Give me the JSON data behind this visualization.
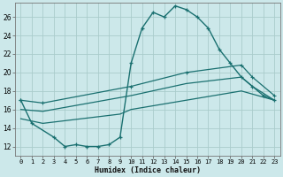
{
  "xlabel": "Humidex (Indice chaleur)",
  "background_color": "#cce8ea",
  "grid_color": "#aacccc",
  "line_color": "#1a7070",
  "xlim": [
    -0.5,
    23.5
  ],
  "ylim": [
    11.0,
    27.5
  ],
  "yticks": [
    12,
    14,
    16,
    18,
    20,
    22,
    24,
    26
  ],
  "xtick_labels": [
    "0",
    "1",
    "2",
    "3",
    "4",
    "5",
    "6",
    "7",
    "8",
    "9",
    "10",
    "11",
    "12",
    "13",
    "14",
    "15",
    "16",
    "17",
    "18",
    "19",
    "20",
    "21",
    "22",
    "23"
  ],
  "series1_x": [
    0,
    1,
    3,
    4,
    5,
    6,
    7,
    8,
    9,
    10,
    11,
    12,
    13,
    14,
    15,
    16,
    17,
    18,
    19,
    20,
    21,
    22,
    23
  ],
  "series1_y": [
    17.0,
    14.5,
    13.0,
    12.0,
    12.2,
    12.0,
    12.0,
    12.2,
    13.0,
    21.0,
    24.8,
    26.5,
    26.0,
    27.2,
    26.8,
    26.0,
    24.8,
    22.5,
    21.0,
    19.5,
    18.5,
    17.5,
    17.0
  ],
  "series2_x": [
    0,
    2,
    10,
    15,
    20,
    21,
    23
  ],
  "series2_y": [
    17.0,
    16.7,
    18.5,
    20.0,
    20.8,
    19.5,
    17.5
  ],
  "series3_x": [
    0,
    2,
    10,
    15,
    20,
    21,
    23
  ],
  "series3_y": [
    16.0,
    15.8,
    17.5,
    18.8,
    19.5,
    18.5,
    17.0
  ],
  "series4_x": [
    0,
    2,
    9,
    10,
    15,
    20,
    23
  ],
  "series4_y": [
    15.0,
    14.5,
    15.5,
    16.0,
    17.0,
    18.0,
    17.0
  ]
}
